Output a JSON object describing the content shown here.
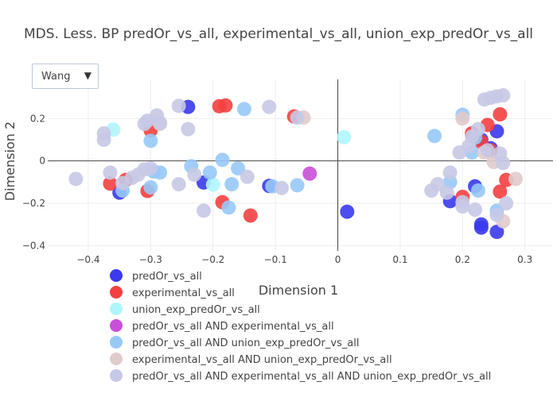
{
  "dropdown": {
    "selected": "Wang",
    "arrow": "▼"
  },
  "chart_data": {
    "type": "scatter",
    "title": "MDS. Less. BP predOr_vs_all, experimental_vs_all, union_exp_predOr_vs_all",
    "xlabel": "Dimension 1",
    "ylabel": "Dimension 2",
    "xlim": [
      -0.465,
      0.345
    ],
    "ylim": [
      -0.425,
      0.385
    ],
    "xticks": [
      -0.4,
      -0.3,
      -0.2,
      -0.1,
      0,
      0.1,
      0.2,
      0.3
    ],
    "yticks": [
      -0.4,
      -0.2,
      0,
      0.2
    ],
    "xtick_labels": [
      "−0.4",
      "−0.3",
      "−0.2",
      "−0.1",
      "0",
      "0.1",
      "0.2",
      "0.3"
    ],
    "ytick_labels": [
      "−0.4",
      "−0.2",
      "0",
      "0.2"
    ],
    "legend_position": "bottom",
    "series": [
      {
        "name": "predOr_vs_all",
        "color": "#3a3aee",
        "points": [
          [
            -0.24,
            0.255
          ],
          [
            -0.215,
            -0.102
          ],
          [
            -0.11,
            -0.118
          ],
          [
            0.015,
            -0.24
          ],
          [
            -0.35,
            -0.15
          ],
          [
            0.23,
            -0.3
          ],
          [
            0.23,
            -0.315
          ],
          [
            0.255,
            -0.335
          ],
          [
            0.255,
            0.14
          ],
          [
            0.22,
            -0.12
          ],
          [
            0.18,
            -0.19
          ],
          [
            0.23,
            0.1
          ],
          [
            0.245,
            0.06
          ]
        ]
      },
      {
        "name": "experimental_vs_all",
        "color": "#f44040",
        "points": [
          [
            -0.19,
            0.258
          ],
          [
            -0.18,
            0.262
          ],
          [
            -0.07,
            0.21
          ],
          [
            -0.3,
            0.145
          ],
          [
            -0.365,
            -0.107
          ],
          [
            -0.34,
            -0.09
          ],
          [
            -0.305,
            -0.142
          ],
          [
            -0.185,
            -0.195
          ],
          [
            -0.14,
            -0.258
          ],
          [
            0.24,
            0.17
          ],
          [
            0.26,
            0.22
          ],
          [
            0.215,
            0.13
          ],
          [
            0.245,
            0.05
          ],
          [
            0.2,
            -0.17
          ],
          [
            0.27,
            -0.09
          ],
          [
            0.26,
            -0.145
          ],
          [
            0.23,
            0.09
          ]
        ]
      },
      {
        "name": "union_exp_predOr_vs_all",
        "color": "#aff6fb",
        "points": [
          [
            -0.36,
            0.148
          ],
          [
            0.01,
            0.112
          ],
          [
            -0.2,
            -0.112
          ]
        ]
      },
      {
        "name": "predOr_vs_all AND experimental_vs_all",
        "color": "#c94fd8",
        "points": [
          [
            -0.045,
            -0.06
          ]
        ]
      },
      {
        "name": "predOr_vs_all AND union_exp_predOr_vs_all",
        "color": "#97c9f7",
        "points": [
          [
            -0.15,
            0.245
          ],
          [
            -0.3,
            0.095
          ],
          [
            -0.295,
            -0.05
          ],
          [
            -0.285,
            -0.055
          ],
          [
            -0.235,
            -0.025
          ],
          [
            -0.205,
            -0.055
          ],
          [
            -0.185,
            0.005
          ],
          [
            -0.16,
            -0.035
          ],
          [
            -0.17,
            -0.11
          ],
          [
            -0.175,
            -0.22
          ],
          [
            -0.3,
            -0.125
          ],
          [
            -0.345,
            -0.14
          ],
          [
            -0.105,
            -0.12
          ],
          [
            -0.065,
            -0.115
          ],
          [
            0.155,
            0.118
          ],
          [
            0.2,
            0.218
          ],
          [
            0.22,
            0.11
          ],
          [
            0.215,
            0.04
          ],
          [
            0.18,
            -0.1
          ],
          [
            0.225,
            -0.14
          ],
          [
            0.255,
            -0.235
          ]
        ]
      },
      {
        "name": "experimental_vs_all AND union_exp_predOr_vs_all",
        "color": "#e0cbcb",
        "points": [
          [
            -0.285,
            0.175
          ],
          [
            -0.055,
            0.205
          ],
          [
            0.25,
            -0.005
          ],
          [
            0.285,
            -0.085
          ],
          [
            0.265,
            -0.285
          ],
          [
            0.2,
            0.2
          ],
          [
            0.235,
            0.04
          ]
        ]
      },
      {
        "name": "predOr_vs_all AND experimental_vs_all AND union_exp_predOr_vs_all",
        "color": "#c6c9e6",
        "points": [
          [
            -0.42,
            -0.085
          ],
          [
            -0.375,
            0.13
          ],
          [
            -0.375,
            0.1
          ],
          [
            -0.365,
            -0.055
          ],
          [
            -0.345,
            -0.105
          ],
          [
            -0.33,
            -0.08
          ],
          [
            -0.32,
            -0.065
          ],
          [
            -0.31,
            -0.04
          ],
          [
            -0.3,
            -0.035
          ],
          [
            -0.305,
            0.19
          ],
          [
            -0.31,
            0.175
          ],
          [
            -0.29,
            0.215
          ],
          [
            -0.255,
            0.26
          ],
          [
            -0.24,
            0.15
          ],
          [
            -0.285,
            0.18
          ],
          [
            -0.255,
            -0.11
          ],
          [
            -0.23,
            -0.065
          ],
          [
            -0.215,
            -0.235
          ],
          [
            -0.145,
            -0.075
          ],
          [
            -0.11,
            0.255
          ],
          [
            -0.09,
            -0.128
          ],
          [
            -0.065,
            0.205
          ],
          [
            0.15,
            -0.14
          ],
          [
            0.16,
            -0.11
          ],
          [
            0.175,
            -0.15
          ],
          [
            0.18,
            -0.055
          ],
          [
            0.195,
            0.04
          ],
          [
            0.21,
            0.07
          ],
          [
            0.215,
            0.115
          ],
          [
            0.225,
            0.15
          ],
          [
            0.2,
            -0.215
          ],
          [
            0.22,
            -0.23
          ],
          [
            0.235,
            0.29
          ],
          [
            0.245,
            0.298
          ],
          [
            0.255,
            0.305
          ],
          [
            0.265,
            0.31
          ],
          [
            0.26,
            0.035
          ],
          [
            0.265,
            -0.01
          ],
          [
            0.27,
            -0.2
          ],
          [
            0.255,
            -0.255
          ],
          [
            0.24,
            0.05
          ],
          [
            0.2,
            -0.195
          ]
        ]
      }
    ]
  }
}
